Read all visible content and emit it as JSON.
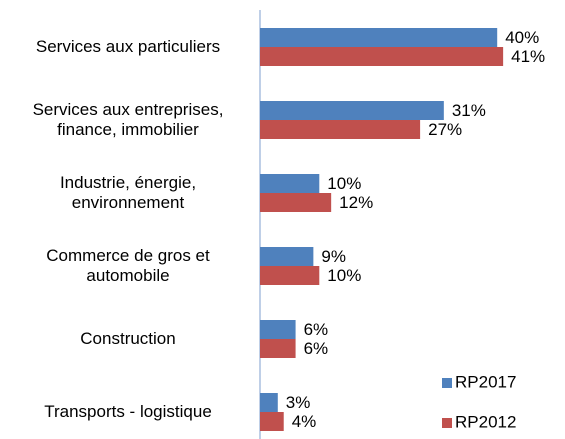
{
  "chart_data": {
    "type": "hbar",
    "categories": [
      "Services aux particuliers",
      "Services aux entreprises, finance, immobilier",
      "Industrie, énergie, environnement",
      "Commerce de gros et automobile",
      "Construction",
      "Transports - logistique"
    ],
    "series": [
      {
        "name": "RP2017",
        "color": "#4f81bd",
        "values": [
          40,
          31,
          10,
          9,
          6,
          3
        ],
        "value_labels": [
          "40%",
          "31%",
          "10%",
          "9%",
          "6%",
          "3%"
        ]
      },
      {
        "name": "RP2012",
        "color": "#c0504d",
        "values": [
          41,
          27,
          12,
          10,
          6,
          4
        ],
        "value_labels": [
          "41%",
          "27%",
          "12%",
          "10%",
          "6%",
          "4%"
        ]
      }
    ],
    "legend": "bottom-right"
  }
}
